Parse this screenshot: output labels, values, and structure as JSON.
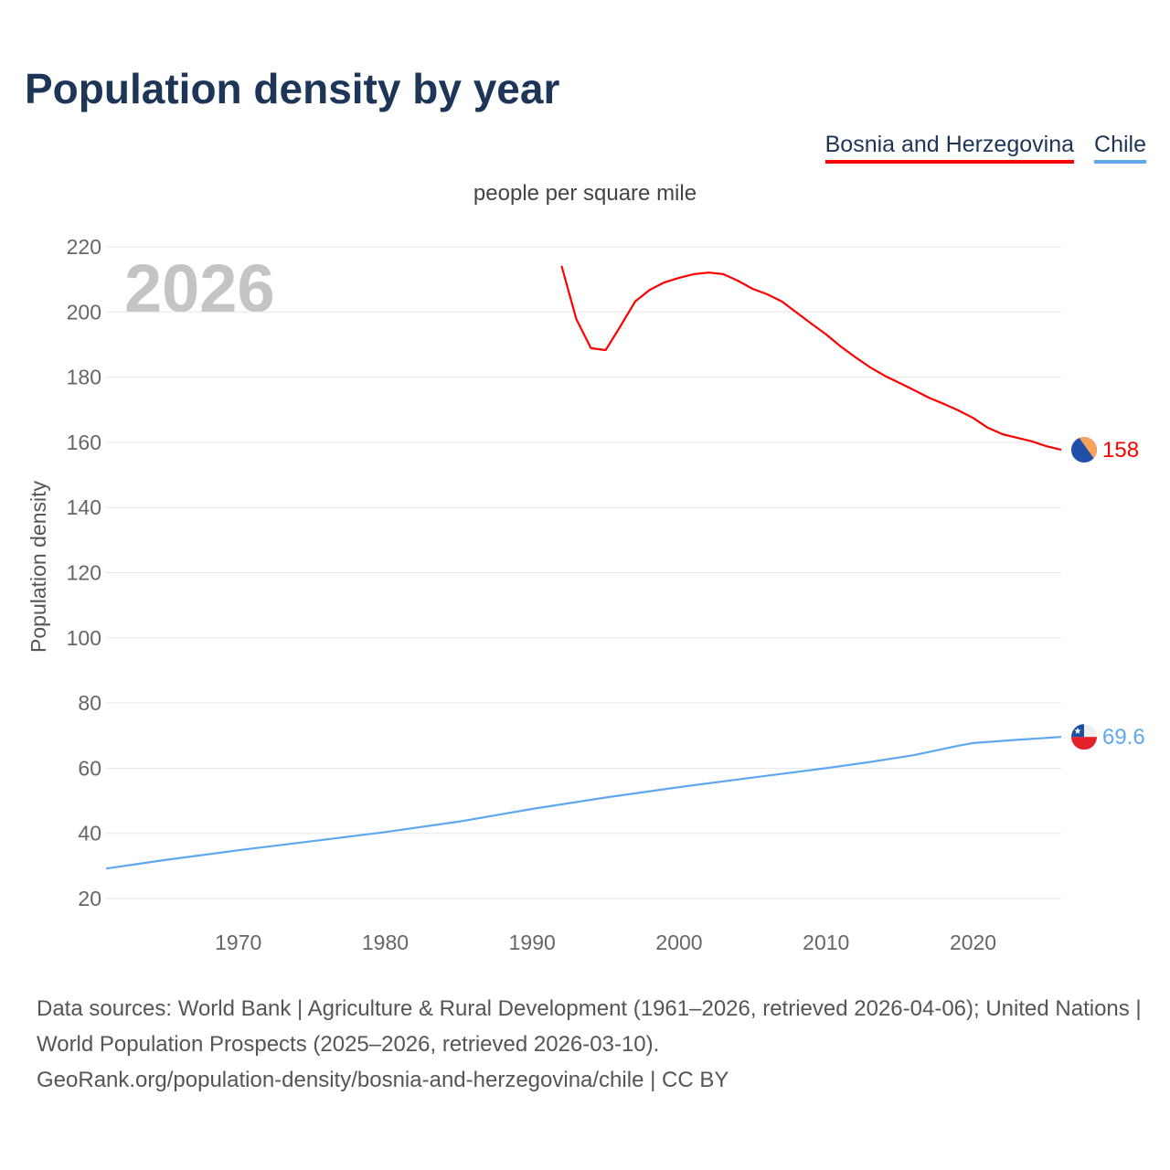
{
  "title": "Population density by year",
  "legend": [
    {
      "label": "Bosnia and Herzegovina",
      "color": "#ff0000"
    },
    {
      "label": "Chile",
      "color": "#5ea8f0"
    }
  ],
  "subtitle": "people per square mile",
  "year_watermark": "2026",
  "source": {
    "line1": "Data sources: World Bank | Agriculture & Rural Development (1961–2026, retrieved 2026-04-06); United Nations | World Population Prospects (2025–2026, retrieved 2026-03-10).",
    "line2": "GeoRank.org/population-density/bosnia-and-herzegovina/chile | CC BY"
  },
  "chart_data": {
    "type": "line",
    "title": "Population density by year",
    "xlabel": "",
    "ylabel": "Population density",
    "xlim": [
      1961,
      2026
    ],
    "ylim": [
      20,
      220
    ],
    "x_ticks": [
      1970,
      1980,
      1990,
      2000,
      2010,
      2020
    ],
    "y_ticks": [
      20,
      40,
      60,
      80,
      100,
      120,
      140,
      160,
      180,
      200,
      220
    ],
    "grid": true,
    "series": [
      {
        "name": "Bosnia and Herzegovina",
        "color": "#ff0000",
        "end_label": "158",
        "x": [
          1992,
          1993,
          1994,
          1995,
          1996,
          1997,
          1998,
          1999,
          2000,
          2001,
          2002,
          2003,
          2004,
          2005,
          2006,
          2007,
          2008,
          2009,
          2010,
          2011,
          2012,
          2013,
          2014,
          2015,
          2016,
          2017,
          2018,
          2019,
          2020,
          2021,
          2022,
          2023,
          2024,
          2025,
          2026
        ],
        "values": [
          214.1,
          197.8,
          188.9,
          188.3,
          195.6,
          203.2,
          206.8,
          209.1,
          210.5,
          211.6,
          212.1,
          211.6,
          209.6,
          207.1,
          205.4,
          203.2,
          199.8,
          196.4,
          193.1,
          189.4,
          186.1,
          183.0,
          180.4,
          178.2,
          176.0,
          173.7,
          171.8,
          169.8,
          167.5,
          164.5,
          162.5,
          161.4,
          160.3,
          158.8,
          157.7
        ]
      },
      {
        "name": "Chile",
        "color": "#5ea8f0",
        "end_label": "69.6",
        "x": [
          1961,
          1965,
          1970,
          1975,
          1980,
          1985,
          1990,
          1995,
          2000,
          2005,
          2010,
          2013,
          2016,
          2019,
          2020,
          2023,
          2026
        ],
        "values": [
          29.2,
          31.8,
          34.8,
          37.6,
          40.4,
          43.6,
          47.5,
          51.0,
          54.2,
          57.1,
          60.0,
          61.9,
          64.0,
          66.9,
          67.7,
          68.7,
          69.6
        ]
      }
    ]
  }
}
